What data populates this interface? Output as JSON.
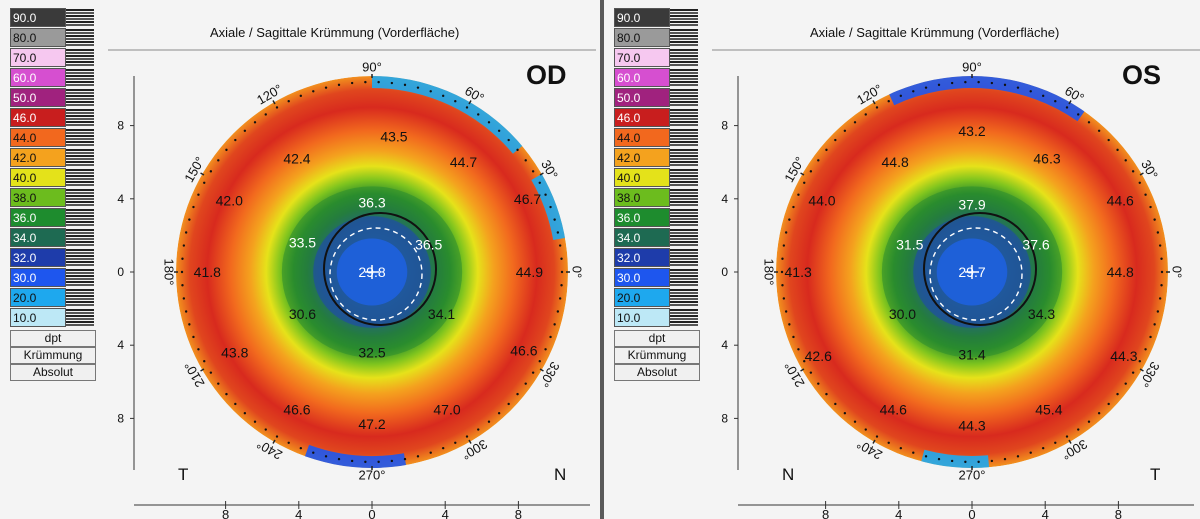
{
  "scale": {
    "values": [
      "90.0",
      "80.0",
      "70.0",
      "60.0",
      "50.0",
      "46.0",
      "44.0",
      "42.0",
      "40.0",
      "38.0",
      "36.0",
      "34.0",
      "32.0",
      "30.0",
      "20.0",
      "10.0"
    ],
    "colors": [
      "#3a3a3a",
      "#9a9a9a",
      "#f6c8f0",
      "#d64fd0",
      "#a0227e",
      "#c81e1e",
      "#f2681e",
      "#f4a21e",
      "#e4e21a",
      "#6cbc1e",
      "#1e8c2e",
      "#1e6a52",
      "#1e3caa",
      "#1e56ee",
      "#1ea8ee",
      "#bde8f6"
    ],
    "unit": "dpt",
    "mode": "Krümmung",
    "type": "Absolut"
  },
  "panels": [
    {
      "title": "Axiale / Sagittale Krümmung (Vorderfläche)",
      "eye": "OD",
      "left_corner": "T",
      "right_corner": "N",
      "angle_labels": [
        "90°",
        "60°",
        "30°",
        "0°",
        "330°",
        "300°",
        "270°",
        "240°",
        "210°",
        "180°",
        "150°",
        "120°"
      ],
      "y_axis_labels": [
        "8",
        "4",
        "0",
        "4",
        "8"
      ],
      "x_axis_labels": [
        "8",
        "4",
        "0",
        "4",
        "8"
      ],
      "values": [
        {
          "text": "43.5",
          "x": 1.2,
          "y": 7.4
        },
        {
          "text": "42.4",
          "x": -4.1,
          "y": 6.2
        },
        {
          "text": "44.7",
          "x": 5.0,
          "y": 6.0
        },
        {
          "text": "42.0",
          "x": -7.8,
          "y": 3.9
        },
        {
          "text": "36.3",
          "x": 0,
          "y": 3.8
        },
        {
          "text": "46.7",
          "x": 8.5,
          "y": 4.0
        },
        {
          "text": "33.5",
          "x": -3.8,
          "y": 1.6
        },
        {
          "text": "36.5",
          "x": 3.1,
          "y": 1.5
        },
        {
          "text": "41.8",
          "x": -9.0,
          "y": 0
        },
        {
          "text": "29.8",
          "x": 0,
          "y": 0
        },
        {
          "text": "44.9",
          "x": 8.6,
          "y": 0
        },
        {
          "text": "30.6",
          "x": -3.8,
          "y": -2.3
        },
        {
          "text": "34.1",
          "x": 3.8,
          "y": -2.3
        },
        {
          "text": "32.5",
          "x": 0,
          "y": -4.4
        },
        {
          "text": "43.8",
          "x": -7.5,
          "y": -4.4
        },
        {
          "text": "46.6",
          "x": 8.3,
          "y": -4.3
        },
        {
          "text": "46.6",
          "x": -4.1,
          "y": -7.5
        },
        {
          "text": "47.2",
          "x": 0,
          "y": -8.3
        },
        {
          "text": "47.0",
          "x": 4.1,
          "y": -7.5
        }
      ]
    },
    {
      "title": "Axiale / Sagittale Krümmung (Vorderfläche)",
      "eye": "OS",
      "left_corner": "N",
      "right_corner": "T",
      "angle_labels": [
        "90°",
        "60°",
        "30°",
        "0°",
        "330°",
        "300°",
        "270°",
        "240°",
        "210°",
        "180°",
        "150°",
        "120°"
      ],
      "y_axis_labels": [
        "8",
        "4",
        "0",
        "4",
        "8"
      ],
      "x_axis_labels": [
        "8",
        "4",
        "0",
        "4",
        "8"
      ],
      "values": [
        {
          "text": "43.2",
          "x": 0,
          "y": 7.7
        },
        {
          "text": "44.8",
          "x": -4.2,
          "y": 6.0
        },
        {
          "text": "46.3",
          "x": 4.1,
          "y": 6.2
        },
        {
          "text": "44.0",
          "x": -8.2,
          "y": 3.9
        },
        {
          "text": "37.9",
          "x": 0,
          "y": 3.7
        },
        {
          "text": "44.6",
          "x": 8.1,
          "y": 3.9
        },
        {
          "text": "31.5",
          "x": -3.4,
          "y": 1.5
        },
        {
          "text": "37.6",
          "x": 3.5,
          "y": 1.5
        },
        {
          "text": "41.3",
          "x": -9.5,
          "y": 0
        },
        {
          "text": "29.7",
          "x": 0,
          "y": 0
        },
        {
          "text": "44.8",
          "x": 8.1,
          "y": 0
        },
        {
          "text": "30.0",
          "x": -3.8,
          "y": -2.3
        },
        {
          "text": "34.3",
          "x": 3.8,
          "y": -2.3
        },
        {
          "text": "31.4",
          "x": 0,
          "y": -4.5
        },
        {
          "text": "42.6",
          "x": -8.4,
          "y": -4.6
        },
        {
          "text": "44.3",
          "x": 8.3,
          "y": -4.6
        },
        {
          "text": "44.6",
          "x": -4.3,
          "y": -7.5
        },
        {
          "text": "45.4",
          "x": 4.2,
          "y": -7.5
        },
        {
          "text": "44.3",
          "x": 0,
          "y": -8.4
        }
      ]
    }
  ]
}
